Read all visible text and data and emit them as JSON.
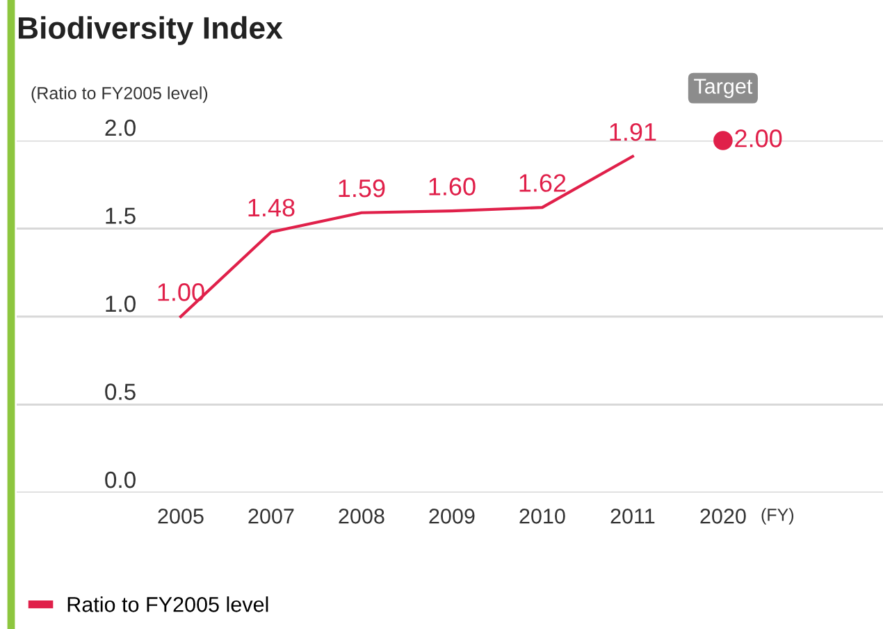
{
  "chart_data": {
    "type": "line",
    "title": "Biodiversity Index",
    "ylabel": "(Ratio to FY2005 level)",
    "xlabel": "(FY)",
    "categories": [
      "2005",
      "2007",
      "2008",
      "2009",
      "2010",
      "2011",
      "2020"
    ],
    "series": [
      {
        "name": "Ratio to FY2005 level",
        "color": "#e0204a",
        "values": [
          1.0,
          1.48,
          1.59,
          1.6,
          1.62,
          1.91,
          null
        ],
        "value_labels": [
          "1.00",
          "1.48",
          "1.59",
          "1.60",
          "1.62",
          "1.91",
          null
        ]
      },
      {
        "type": "scatter",
        "color": "#e0204a",
        "values": [
          null,
          null,
          null,
          null,
          null,
          null,
          2.0
        ],
        "value_labels": [
          null,
          null,
          null,
          null,
          null,
          null,
          "2.00"
        ],
        "marker": "circle"
      }
    ],
    "annotations": [
      {
        "text": "Target",
        "x": "2020",
        "y": 2.0
      }
    ],
    "ylim": [
      0,
      2.0
    ],
    "yticks": [
      {
        "value": 0,
        "label": "0.0"
      },
      {
        "value": 0.5,
        "label": "0.5"
      },
      {
        "value": 1.0,
        "label": "1.0"
      },
      {
        "value": 1.5,
        "label": "1.5"
      },
      {
        "value": 2.0,
        "label": "2.0"
      }
    ],
    "grid": "y",
    "legend": "bottom left"
  }
}
